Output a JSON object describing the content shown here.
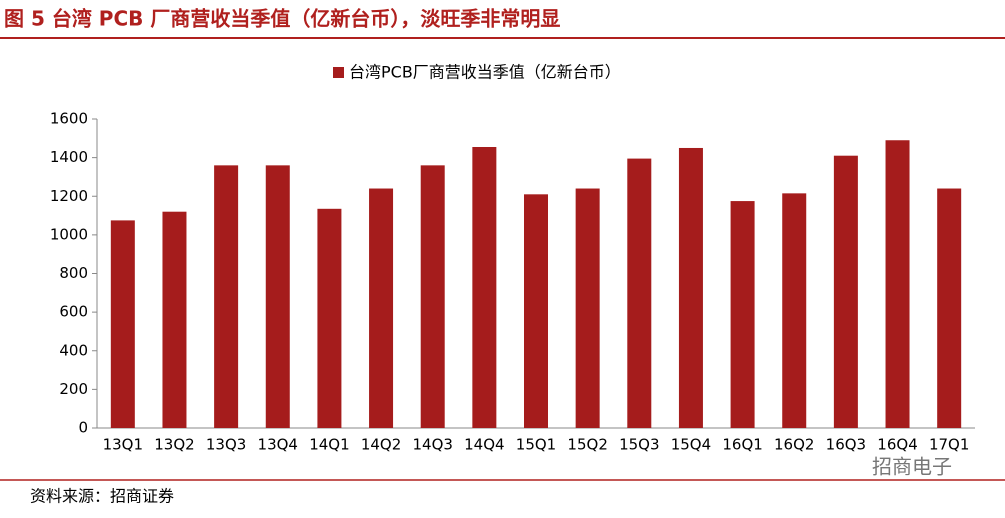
{
  "header": {
    "title": "图 5 台湾 PCB 厂商营收当季值（亿新台币），淡旺季非常明显"
  },
  "chart_data": {
    "type": "bar",
    "categories": [
      "13Q1",
      "13Q2",
      "13Q3",
      "13Q4",
      "14Q1",
      "14Q2",
      "14Q3",
      "14Q4",
      "15Q1",
      "15Q2",
      "15Q3",
      "15Q4",
      "16Q1",
      "16Q2",
      "16Q3",
      "16Q4",
      "17Q1"
    ],
    "series": [
      {
        "name": "台湾PCB厂商营收当季值（亿新台币）",
        "color": "#a51c1c",
        "values": [
          1075,
          1120,
          1360,
          1360,
          1135,
          1240,
          1360,
          1455,
          1210,
          1240,
          1395,
          1450,
          1175,
          1215,
          1410,
          1490,
          1240
        ]
      }
    ],
    "ylim": [
      0,
      1600
    ],
    "yticks": [
      0,
      200,
      400,
      600,
      800,
      1000,
      1200,
      1400,
      1600
    ],
    "legend": "top"
  },
  "footer": {
    "source": "资料来源：招商证券",
    "watermark": "招商电子"
  }
}
